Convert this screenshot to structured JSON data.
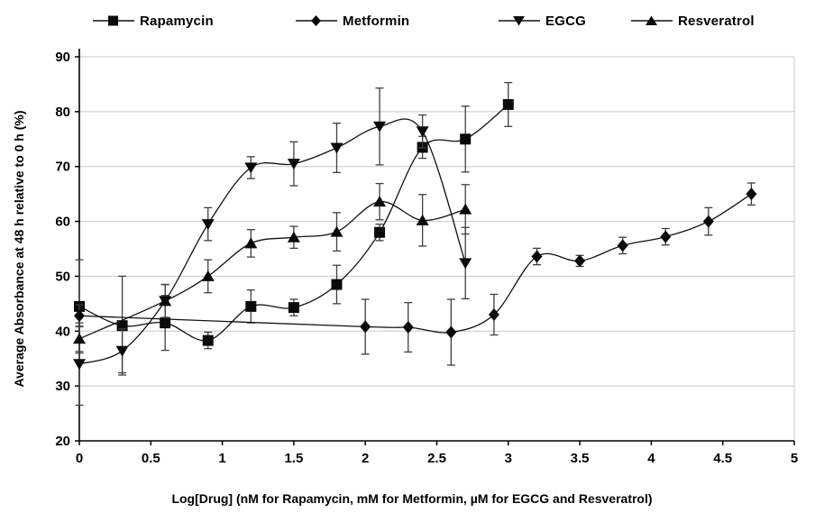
{
  "legend": {
    "items": [
      {
        "label": "Rapamycin",
        "marker": "square"
      },
      {
        "label": "Metformin",
        "marker": "diamond"
      },
      {
        "label": "EGCG",
        "marker": "triangle-down"
      },
      {
        "label": "Resveratrol",
        "marker": "triangle-up"
      }
    ]
  },
  "chart_data": {
    "type": "line",
    "title": "",
    "xlabel": "Log[Drug] (nM for Rapamycin, mM for Metformin, µM for EGCG and Resveratrol)",
    "ylabel": "Average Absorbance at 48 h relative to 0 h (%)",
    "xlim": [
      0,
      5
    ],
    "ylim": [
      20,
      90
    ],
    "xticks": [
      0,
      0.5,
      1,
      1.5,
      2,
      2.5,
      3,
      3.5,
      4,
      4.5,
      5
    ],
    "yticks": [
      20,
      30,
      40,
      50,
      60,
      70,
      80,
      90
    ],
    "grid": "horizontal",
    "legend_position": "top",
    "colors": {
      "series": "#111111",
      "grid": "#c8c8c8",
      "error_bar": "#3f3f3f",
      "axis": "#000000",
      "background": "#ffffff"
    },
    "series": [
      {
        "name": "Rapamycin",
        "marker": "square",
        "points": [
          {
            "x": 0.0,
            "y": 44.5,
            "err": 8.5
          },
          {
            "x": 0.3,
            "y": 41.0,
            "err": 9.0
          },
          {
            "x": 0.6,
            "y": 41.5,
            "err": 5.0
          },
          {
            "x": 0.9,
            "y": 38.3,
            "err": 1.5
          },
          {
            "x": 1.2,
            "y": 44.5,
            "err": 3.0
          },
          {
            "x": 1.5,
            "y": 44.3,
            "err": 1.5
          },
          {
            "x": 1.8,
            "y": 48.5,
            "err": 3.5
          },
          {
            "x": 2.1,
            "y": 58.0,
            "err": 1.5
          },
          {
            "x": 2.4,
            "y": 73.5,
            "err": 2.0
          },
          {
            "x": 2.7,
            "y": 75.0,
            "err": 6.0
          },
          {
            "x": 3.0,
            "y": 81.3,
            "err": 4.0
          }
        ]
      },
      {
        "name": "Metformin",
        "marker": "diamond",
        "points": [
          {
            "x": 0.0,
            "y": 42.8,
            "err": 2.0
          },
          {
            "x": 2.0,
            "y": 40.8,
            "err": 5.0
          },
          {
            "x": 2.3,
            "y": 40.7,
            "err": 4.5
          },
          {
            "x": 2.6,
            "y": 39.8,
            "err": 6.0
          },
          {
            "x": 2.9,
            "y": 43.0,
            "err": 3.7
          },
          {
            "x": 3.2,
            "y": 53.6,
            "err": 1.5
          },
          {
            "x": 3.5,
            "y": 52.8,
            "err": 1.0
          },
          {
            "x": 3.8,
            "y": 55.6,
            "err": 1.5
          },
          {
            "x": 4.1,
            "y": 57.2,
            "err": 1.5
          },
          {
            "x": 4.4,
            "y": 60.0,
            "err": 2.5
          },
          {
            "x": 4.7,
            "y": 65.0,
            "err": 2.0
          }
        ]
      },
      {
        "name": "EGCG",
        "marker": "triangle-down",
        "points": [
          {
            "x": 0.0,
            "y": 34.0,
            "err": 7.5
          },
          {
            "x": 0.3,
            "y": 36.4,
            "err": 4.0
          },
          {
            "x": 0.6,
            "y": 45.5,
            "err": 3.0
          },
          {
            "x": 0.9,
            "y": 59.5,
            "err": 3.0
          },
          {
            "x": 1.2,
            "y": 69.8,
            "err": 2.0
          },
          {
            "x": 1.5,
            "y": 70.5,
            "err": 4.0
          },
          {
            "x": 1.8,
            "y": 73.4,
            "err": 4.5
          },
          {
            "x": 2.1,
            "y": 77.3,
            "err": 7.0
          },
          {
            "x": 2.4,
            "y": 76.4,
            "err": 3.0
          },
          {
            "x": 2.7,
            "y": 52.4,
            "err": 6.5
          }
        ]
      },
      {
        "name": "Resveratrol",
        "marker": "triangle-up",
        "points": [
          {
            "x": 0.0,
            "y": 38.6,
            "err": 2.3
          },
          {
            "x": 0.6,
            "y": 45.5,
            "err": 3.0
          },
          {
            "x": 0.9,
            "y": 50.0,
            "err": 3.0
          },
          {
            "x": 1.2,
            "y": 56.0,
            "err": 2.5
          },
          {
            "x": 1.5,
            "y": 57.1,
            "err": 2.0
          },
          {
            "x": 1.8,
            "y": 58.1,
            "err": 3.5
          },
          {
            "x": 2.1,
            "y": 63.6,
            "err": 3.3
          },
          {
            "x": 2.4,
            "y": 60.2,
            "err": 4.7
          },
          {
            "x": 2.7,
            "y": 62.2,
            "err": 4.5
          }
        ]
      }
    ]
  }
}
